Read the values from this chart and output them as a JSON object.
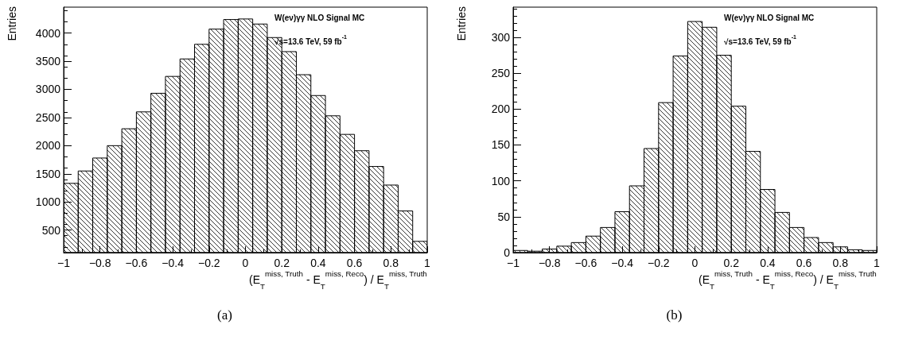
{
  "chart_data": [
    {
      "type": "histogram",
      "title": "(a)",
      "xlabel": "(E$_{T}$$^{miss, Truth}$ - E$_{T}$$^{miss, Reco}$) / E$_{T}$$^{miss, Truth}$",
      "ylabel": "Entries",
      "annotations": [
        "W(eν)γγ NLO Signal MC",
        "√s=13.6 TeV, 59 fb$^{-1}$"
      ],
      "bins": [
        -1,
        -0.92,
        -0.84,
        -0.76,
        -0.68,
        -0.6,
        -0.52,
        -0.44,
        -0.36,
        -0.28,
        -0.2,
        -0.12,
        -0.04,
        0.04,
        0.12,
        0.2,
        0.28,
        0.36,
        0.44,
        0.52,
        0.6,
        0.68,
        0.76,
        0.84,
        0.92,
        1
      ],
      "values": [
        1330,
        1550,
        1780,
        2000,
        2300,
        2600,
        2930,
        3230,
        3540,
        3800,
        4070,
        4240,
        4250,
        4160,
        3920,
        3670,
        3260,
        2890,
        2530,
        2200,
        1910,
        1630,
        1300,
        840,
        300
      ],
      "color": "#000000",
      "xlim": [
        -1,
        1
      ],
      "xticks": [
        {
          "value": -1,
          "label": "−1"
        },
        {
          "value": -0.8,
          "label": "−0.8"
        },
        {
          "value": -0.6,
          "label": "−0.6"
        },
        {
          "value": -0.4,
          "label": "−0.4"
        },
        {
          "value": -0.2,
          "label": "−0.2"
        },
        0,
        0.2,
        0.4,
        0.6,
        0.8,
        1
      ],
      "ylim": [
        100,
        4460
      ],
      "yticks": [
        500,
        1000,
        1500,
        2000,
        2500,
        3000,
        3500,
        4000
      ],
      "grid": false
    },
    {
      "type": "histogram",
      "title": "(b)",
      "xlabel": "(E$_{T}$$^{miss, Truth}$ - E$_{T}$$^{miss, Reco}$) / E$_{T}$$^{miss, Truth}$",
      "ylabel": "Entries",
      "annotations": [
        "W(eν)γγ NLO Signal MC",
        "√s=13.6 TeV, 59 fb$^{-1}$"
      ],
      "bins": [
        -1,
        -0.92,
        -0.84,
        -0.76,
        -0.68,
        -0.6,
        -0.52,
        -0.44,
        -0.36,
        -0.28,
        -0.2,
        -0.12,
        -0.04,
        0.04,
        0.12,
        0.2,
        0.28,
        0.36,
        0.44,
        0.52,
        0.6,
        0.68,
        0.76,
        0.84,
        0.92,
        1
      ],
      "values": [
        3,
        2,
        5,
        9,
        14,
        23,
        35,
        57,
        93,
        145,
        209,
        274,
        322,
        314,
        275,
        204,
        141,
        88,
        56,
        35,
        21,
        14,
        8,
        4,
        3
      ],
      "color": "#000000",
      "xlim": [
        -1,
        1
      ],
      "xticks": [
        {
          "value": -1,
          "label": "−1"
        },
        {
          "value": -0.8,
          "label": "−0.8"
        },
        {
          "value": -0.6,
          "label": "−0.6"
        },
        {
          "value": -0.4,
          "label": "−0.4"
        },
        {
          "value": -0.2,
          "label": "−0.2"
        },
        0,
        0.2,
        0.4,
        0.6,
        0.8,
        1
      ],
      "ylim": [
        0,
        342
      ],
      "yticks": [
        0,
        50,
        100,
        150,
        200,
        250,
        300
      ],
      "grid": false
    }
  ]
}
